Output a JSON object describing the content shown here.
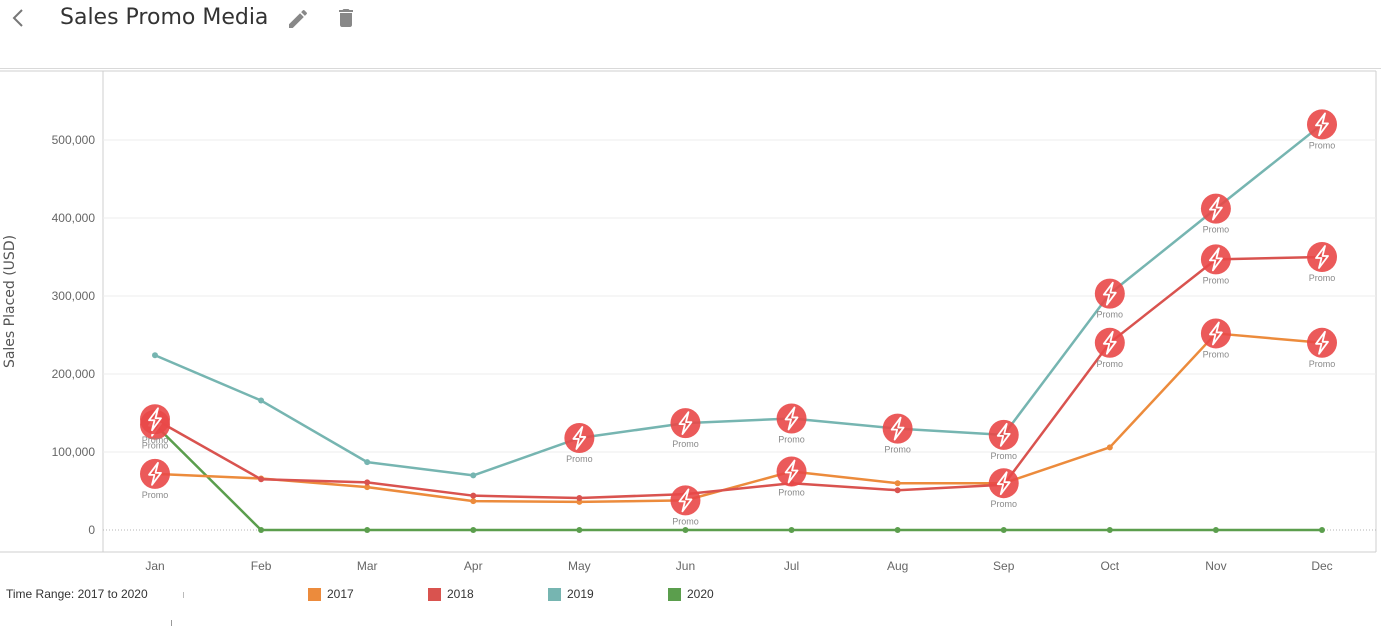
{
  "header": {
    "title": "Sales Promo Media"
  },
  "footer": {
    "time_range": "Time Range: 2017 to 2020"
  },
  "chart_data": {
    "type": "line",
    "categories": [
      "Jan",
      "Feb",
      "Mar",
      "Apr",
      "May",
      "Jun",
      "Jul",
      "Aug",
      "Sep",
      "Oct",
      "Nov",
      "Dec"
    ],
    "ylabel": "Sales Placed (USD)",
    "ylim": [
      0,
      560000
    ],
    "yticks": [
      0,
      100000,
      200000,
      300000,
      400000,
      500000
    ],
    "ytick_labels": [
      "0",
      "100,000",
      "200,000",
      "300,000",
      "400,000",
      "500,000"
    ],
    "grid": true,
    "legend_position": "bottom",
    "promo_label": "Promo",
    "series": [
      {
        "name": "2017",
        "color": "#ec8b3c",
        "values": [
          72000,
          66000,
          55000,
          37000,
          36000,
          38000,
          75000,
          60000,
          60000,
          106000,
          252000,
          240000
        ],
        "promo": [
          true,
          false,
          false,
          false,
          false,
          true,
          true,
          false,
          true,
          false,
          true,
          true
        ]
      },
      {
        "name": "2018",
        "color": "#d9534f",
        "values": [
          142000,
          65000,
          61000,
          44000,
          41000,
          46000,
          60000,
          51000,
          58000,
          240000,
          347000,
          350000
        ],
        "promo": [
          true,
          false,
          false,
          false,
          false,
          false,
          false,
          false,
          false,
          true,
          true,
          true
        ]
      },
      {
        "name": "2019",
        "color": "#76b5b1",
        "values": [
          224000,
          166000,
          87000,
          70000,
          118000,
          137000,
          143000,
          130000,
          122000,
          303000,
          412000,
          520000
        ],
        "promo": [
          false,
          false,
          false,
          false,
          true,
          true,
          true,
          true,
          true,
          true,
          true,
          true
        ]
      },
      {
        "name": "2020",
        "color": "#5b9e4d",
        "values": [
          135000,
          0,
          0,
          0,
          0,
          0,
          0,
          0,
          0,
          0,
          0,
          0
        ],
        "promo": [
          true,
          false,
          false,
          false,
          false,
          false,
          false,
          false,
          false,
          false,
          false,
          false
        ]
      }
    ]
  },
  "colors": {
    "promo_badge": "#e94848",
    "grid": "#ececec",
    "axis": "#cfcfcf"
  },
  "icons": {
    "back": "chevron-left-icon",
    "edit": "pencil-icon",
    "delete": "trash-icon",
    "promo": "lightning-bolt-icon"
  }
}
